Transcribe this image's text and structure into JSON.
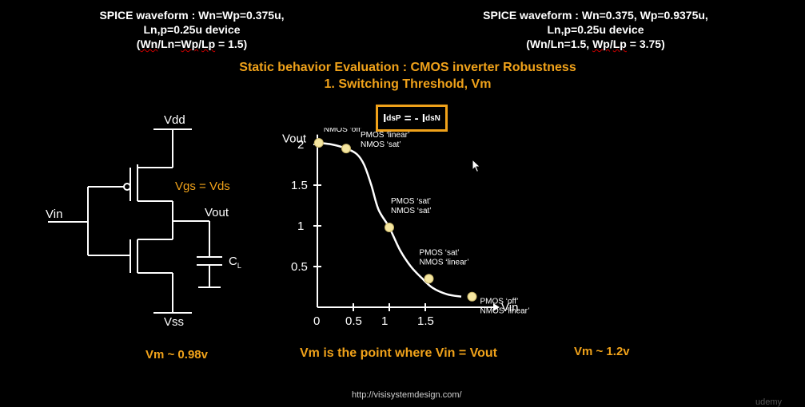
{
  "header_left": {
    "line1": "SPICE waveform : Wn=Wp=0.375u,",
    "line2": "Ln,p=0.25u device",
    "line3_open": "(",
    "line3_wn": "Wn",
    "line3_mid1": "/Ln=",
    "line3_wp": "Wp",
    "line3_mid2": "/",
    "line3_lp": "Lp",
    "line3_end": " = 1.5)"
  },
  "header_right": {
    "line1": "SPICE waveform : Wn=0.375, Wp=0.9375u,",
    "line2": "Ln,p=0.25u device",
    "line3_open": "(Wn/Ln=1.5, ",
    "line3_wp": "Wp",
    "line3_mid": "/",
    "line3_lp": "Lp",
    "line3_end": " = 3.75)"
  },
  "title": {
    "line1": "Static behavior Evaluation : CMOS inverter Robustness",
    "line2": "1. Switching Threshold, Vm"
  },
  "equation": {
    "i1": "I",
    "s1": "dsP",
    "eq": " = - ",
    "i2": "I",
    "s2": "dsN"
  },
  "circuit": {
    "vdd": "Vdd",
    "vss": "Vss",
    "vin": "Vin",
    "vout": "Vout",
    "vgs": "Vgs = Vds",
    "cap": "C",
    "cap_sub": "L"
  },
  "chart_data": {
    "type": "line",
    "xlabel": "Vin",
    "ylabel": "Vout",
    "x_ticks": [
      "0",
      "0.5",
      "1",
      "1.5"
    ],
    "y_ticks": [
      "2",
      "1.5",
      "1",
      "0.5"
    ],
    "x_tick_values": [
      0,
      0.5,
      1,
      1.5
    ],
    "y_tick_values": [
      2,
      1.5,
      1,
      0.5
    ],
    "xlim": [
      0,
      2.2
    ],
    "ylim": [
      0,
      2.2
    ],
    "curve": [
      [
        0,
        2.02
      ],
      [
        0.2,
        2.0
      ],
      [
        0.4,
        1.95
      ],
      [
        0.55,
        1.88
      ],
      [
        0.65,
        1.75
      ],
      [
        0.75,
        1.5
      ],
      [
        0.85,
        1.2
      ],
      [
        1.0,
        0.98
      ],
      [
        1.15,
        0.7
      ],
      [
        1.3,
        0.5
      ],
      [
        1.45,
        0.36
      ],
      [
        1.6,
        0.24
      ],
      [
        1.8,
        0.16
      ],
      [
        2.0,
        0.13
      ]
    ],
    "points": [
      {
        "x": 0.02,
        "y": 2.02,
        "l1": "PMOS ‘linear’",
        "l2": "NMOS ‘off’"
      },
      {
        "x": 0.4,
        "y": 1.95,
        "l1": "PMOS ‘linear’",
        "l2": "NMOS ‘sat’"
      },
      {
        "x": 1.0,
        "y": 0.98,
        "l1": "PMOS ‘sat’",
        "l2": "NMOS ‘sat’"
      },
      {
        "x": 1.55,
        "y": 0.35,
        "l1": "PMOS ‘sat’",
        "l2": "NMOS ‘linear’"
      },
      {
        "x": 2.15,
        "y": 0.13,
        "l1": "PMOS ‘off’",
        "l2": "NMOS ‘linear’"
      }
    ]
  },
  "footer": {
    "vm_left": "Vm ~ 0.98v",
    "vm_center": "Vm is the point where Vin = Vout",
    "vm_right": "Vm ~ 1.2v",
    "url": "http://visisystemdesign.com/",
    "brand": "udemy"
  },
  "colors": {
    "accent": "#f0a21a",
    "point": "#f5e6a0",
    "background": "#000000"
  },
  "icons": {
    "cursor": "mouse-pointer-icon"
  }
}
